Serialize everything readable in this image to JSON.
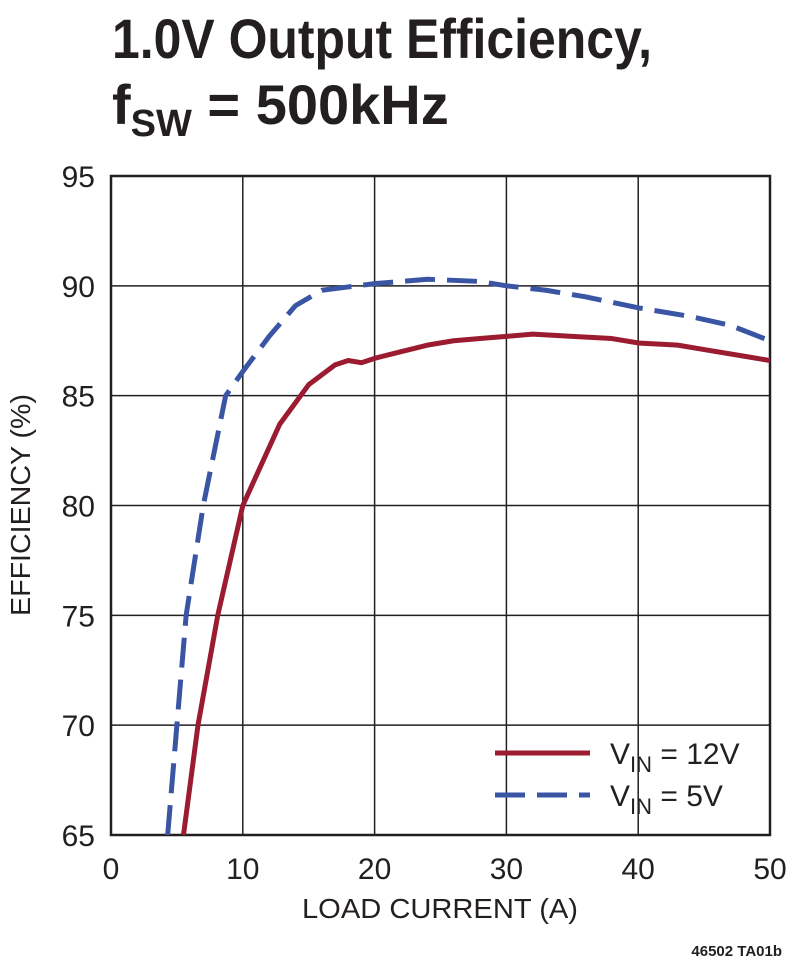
{
  "chart_data": {
    "type": "line",
    "title": {
      "line1": "1.0V Output Efficiency,",
      "line2": [
        "f",
        "SW",
        " = 500kHz"
      ]
    },
    "x_label": "LOAD CURRENT (A)",
    "y_label": "EFFICIENCY (%)",
    "note": "46502 TA01b",
    "xlim": [
      0,
      50
    ],
    "xticks": [
      0,
      10,
      20,
      30,
      40,
      50
    ],
    "ylim": [
      65,
      95
    ],
    "yticks": [
      65,
      70,
      75,
      80,
      85,
      90,
      95
    ],
    "grid": true,
    "legend": "lower-right",
    "series": [
      {
        "name": [
          "V",
          "IN",
          " = 12V"
        ],
        "color": "#9b1b30",
        "dash": false,
        "x": [
          5.5,
          6.6,
          8.1,
          10,
          12.8,
          15,
          17,
          18,
          19,
          20,
          22,
          24,
          26,
          28,
          30,
          32,
          35,
          38,
          40,
          43,
          45,
          48,
          50
        ],
        "values": [
          65,
          70,
          75,
          80,
          83.7,
          85.5,
          86.4,
          86.6,
          86.5,
          86.7,
          87.0,
          87.3,
          87.5,
          87.6,
          87.7,
          87.8,
          87.7,
          87.6,
          87.4,
          87.3,
          87.1,
          86.8,
          86.6
        ]
      },
      {
        "name": [
          "V",
          "IN",
          " = 5V"
        ],
        "color": "#3a55a4",
        "dash": true,
        "x": [
          4.3,
          5.0,
          5.7,
          7.0,
          8.7,
          10,
          12,
          14,
          16,
          18,
          20,
          24,
          28,
          30,
          33,
          36,
          40,
          44,
          47,
          50
        ],
        "values": [
          65,
          70,
          75,
          80,
          85,
          86.1,
          87.7,
          89.1,
          89.8,
          89.95,
          90.1,
          90.3,
          90.2,
          90.0,
          89.8,
          89.5,
          89.0,
          88.6,
          88.2,
          87.5
        ]
      }
    ]
  }
}
